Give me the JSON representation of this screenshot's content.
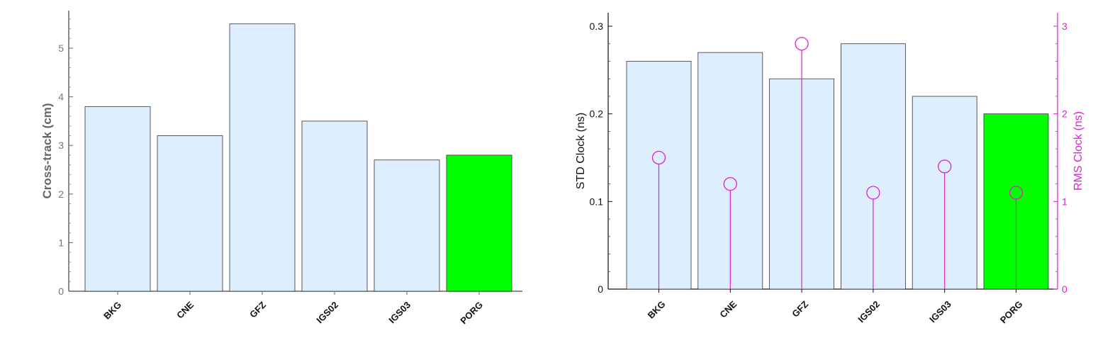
{
  "chart_data": [
    {
      "type": "bar",
      "categories": [
        "BKG",
        "CNE",
        "GFZ",
        "IGS02",
        "IGS03",
        "PORG"
      ],
      "values": [
        3.8,
        3.2,
        5.5,
        3.5,
        2.7,
        2.8
      ],
      "title": "",
      "xlabel": "",
      "ylabel": "Cross-track (cm)",
      "ylim": [
        0,
        5.8
      ],
      "yticks": [
        "0",
        "1",
        "2",
        "3",
        "4",
        "5"
      ],
      "bar_color": "#ddeeff",
      "highlight_category": "PORG",
      "highlight_color": "#00ff00",
      "axis_color": "#666666",
      "grid": false
    },
    {
      "type": "bar",
      "categories": [
        "BKG",
        "CNE",
        "GFZ",
        "IGS02",
        "IGS03",
        "PORG"
      ],
      "values": [
        0.26,
        0.27,
        0.24,
        0.28,
        0.22,
        0.2
      ],
      "title": "",
      "xlabel": "",
      "ylabel": "STD Clock  (ns)",
      "ylim": [
        0,
        0.31
      ],
      "yticks": [
        "0",
        "0.1",
        "0.2",
        "0.3"
      ],
      "bar_color": "#ddeeff",
      "highlight_category": "PORG",
      "highlight_color": "#00ff00",
      "grid": false,
      "secondary_series": {
        "type": "stem",
        "values": [
          1.5,
          1.2,
          2.8,
          1.1,
          1.4,
          1.1
        ],
        "ylabel": "RMS Clock  (ns)",
        "ylim": [
          0,
          3.1
        ],
        "yticks": [
          "0",
          "1",
          "2",
          "3"
        ],
        "color": "#e020d0"
      }
    }
  ]
}
